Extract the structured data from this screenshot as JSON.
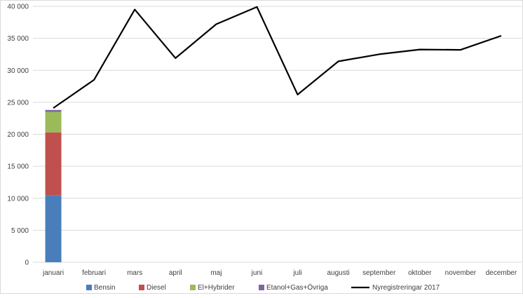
{
  "chart_data": {
    "type": "bar",
    "categories": [
      "januari",
      "februari",
      "mars",
      "april",
      "maj",
      "juni",
      "juli",
      "augusti",
      "september",
      "oktober",
      "november",
      "december"
    ],
    "stacked_bars": [
      {
        "name": "Bensin",
        "color": "#4a7ebb",
        "values": [
          10500,
          null,
          null,
          null,
          null,
          null,
          null,
          null,
          null,
          null,
          null,
          null
        ]
      },
      {
        "name": "Diesel",
        "color": "#c0504d",
        "values": [
          9800,
          null,
          null,
          null,
          null,
          null,
          null,
          null,
          null,
          null,
          null,
          null
        ]
      },
      {
        "name": "El+Hybrider",
        "color": "#9bbb59",
        "values": [
          3200,
          null,
          null,
          null,
          null,
          null,
          null,
          null,
          null,
          null,
          null,
          null
        ]
      },
      {
        "name": "Etanol+Gas+Övriga",
        "color": "#8064a2",
        "values": [
          300,
          null,
          null,
          null,
          null,
          null,
          null,
          null,
          null,
          null,
          null,
          null
        ]
      }
    ],
    "line_series": {
      "name": "Nyregistreringar 2017",
      "color": "#000000",
      "values": [
        24100,
        28500,
        39500,
        31900,
        37200,
        39900,
        26200,
        31400,
        32500,
        33250,
        33200,
        35400
      ]
    },
    "ylim": [
      0,
      40000
    ],
    "y_ticks": [
      "0",
      "5 000",
      "10 000",
      "15 000",
      "20 000",
      "25 000",
      "30 000",
      "35 000",
      "40 000"
    ],
    "grid": true,
    "legend_position": "bottom"
  }
}
